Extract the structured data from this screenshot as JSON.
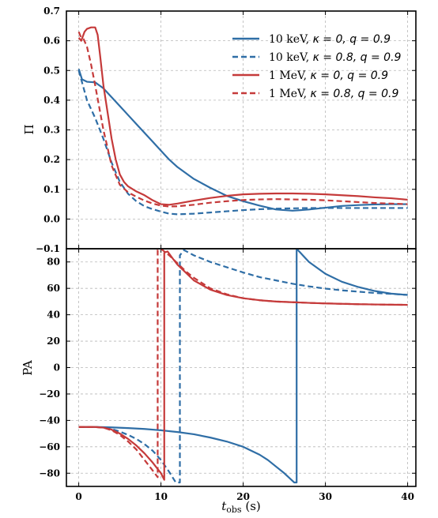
{
  "chart_data": [
    {
      "type": "line",
      "panel": "top",
      "ylabel": "Π",
      "ylim": [
        -0.1,
        0.7
      ],
      "xlim": [
        -1.5,
        41
      ],
      "yticks": [
        "−0.1",
        "0.0",
        "0.1",
        "0.2",
        "0.3",
        "0.4",
        "0.5",
        "0.6",
        "0.7"
      ],
      "grid": true,
      "legend_position": "top-right",
      "series": [
        {
          "name": "10 keV, κ = 0, q = 0.9",
          "color": "#2f6ea6",
          "dash": "solid",
          "x": [
            0,
            0.4,
            1,
            2,
            3,
            4,
            5,
            6,
            7,
            8,
            9,
            10,
            11,
            12,
            14,
            16,
            18,
            20,
            22,
            24,
            26,
            28,
            30,
            32,
            34,
            36,
            38,
            40
          ],
          "y": [
            0.505,
            0.47,
            0.462,
            0.46,
            0.44,
            0.41,
            0.38,
            0.35,
            0.32,
            0.29,
            0.26,
            0.23,
            0.2,
            0.175,
            0.135,
            0.105,
            0.078,
            0.06,
            0.045,
            0.032,
            0.028,
            0.032,
            0.038,
            0.044,
            0.047,
            0.049,
            0.05,
            0.05
          ]
        },
        {
          "name": "10 keV, κ = 0.8, q = 0.9",
          "color": "#2f6ea6",
          "dash": "dashed",
          "x": [
            0,
            0.5,
            1,
            2,
            3,
            4,
            5,
            6,
            7,
            8,
            9,
            10,
            11,
            12,
            14,
            16,
            18,
            20,
            22,
            24,
            26,
            28,
            30,
            32,
            34,
            36,
            38,
            40
          ],
          "y": [
            0.5,
            0.45,
            0.4,
            0.34,
            0.27,
            0.19,
            0.125,
            0.085,
            0.06,
            0.043,
            0.033,
            0.025,
            0.018,
            0.016,
            0.018,
            0.022,
            0.026,
            0.03,
            0.033,
            0.035,
            0.036,
            0.037,
            0.037,
            0.037,
            0.037,
            0.037,
            0.037,
            0.037
          ]
        },
        {
          "name": "1 MeV, κ = 0, q = 0.9",
          "color": "#c53a3a",
          "dash": "solid",
          "x": [
            0,
            0.3,
            0.7,
            1,
            1.5,
            2,
            2.3,
            2.6,
            3,
            3.5,
            4,
            4.5,
            5,
            5.5,
            6,
            7,
            8,
            9,
            10,
            11,
            12,
            14,
            16,
            18,
            20,
            22,
            24,
            26,
            28,
            30,
            32,
            34,
            36,
            38,
            40
          ],
          "y": [
            0.61,
            0.6,
            0.63,
            0.64,
            0.645,
            0.645,
            0.62,
            0.55,
            0.45,
            0.36,
            0.27,
            0.2,
            0.15,
            0.125,
            0.11,
            0.093,
            0.08,
            0.063,
            0.05,
            0.048,
            0.052,
            0.062,
            0.071,
            0.078,
            0.083,
            0.085,
            0.086,
            0.086,
            0.085,
            0.083,
            0.08,
            0.077,
            0.073,
            0.07,
            0.065
          ]
        },
        {
          "name": "1 MeV, κ = 0.8, q = 0.9",
          "color": "#c53a3a",
          "dash": "dashed",
          "x": [
            0,
            0.3,
            0.6,
            1,
            1.5,
            2,
            3,
            4,
            5,
            6,
            7,
            8,
            9,
            10,
            11,
            12,
            14,
            16,
            18,
            20,
            22,
            24,
            26,
            28,
            30,
            32,
            34,
            36,
            38,
            40
          ],
          "y": [
            0.63,
            0.61,
            0.605,
            0.58,
            0.52,
            0.45,
            0.3,
            0.18,
            0.115,
            0.09,
            0.075,
            0.062,
            0.052,
            0.045,
            0.042,
            0.043,
            0.048,
            0.055,
            0.06,
            0.064,
            0.066,
            0.067,
            0.066,
            0.065,
            0.063,
            0.06,
            0.057,
            0.054,
            0.052,
            0.05
          ]
        }
      ]
    },
    {
      "type": "line",
      "panel": "bottom",
      "xlabel_main": "t",
      "xlabel_sub": "obs",
      "xlabel_unit": " (s)",
      "ylabel": "PA",
      "ylim": [
        -90,
        90
      ],
      "xlim": [
        -1.5,
        41
      ],
      "xticks": [
        "0",
        "10",
        "20",
        "30",
        "40"
      ],
      "yticks": [
        "−80",
        "−60",
        "−40",
        "−20",
        "0",
        "20",
        "40",
        "60",
        "80"
      ],
      "grid": true,
      "series": [
        {
          "name": "10 keV, κ = 0, q = 0.9",
          "color": "#2f6ea6",
          "dash": "solid",
          "x": [
            0,
            2,
            4,
            6,
            8,
            10,
            12,
            14,
            16,
            18,
            20,
            22,
            23,
            24,
            25,
            26.2,
            26.5,
            26.5,
            28,
            30,
            32,
            34,
            36,
            38,
            40
          ],
          "y": [
            -45,
            -45,
            -45.3,
            -45.8,
            -46.5,
            -47.5,
            -48.8,
            -50.5,
            -53,
            -56,
            -60,
            -66,
            -70,
            -75,
            -80,
            -87,
            -87,
            90,
            80,
            71,
            65,
            61,
            58,
            56,
            55
          ]
        },
        {
          "name": "10 keV, κ = 0.8, q = 0.9",
          "color": "#2f6ea6",
          "dash": "dashed",
          "x": [
            0,
            2,
            3,
            4,
            5,
            6,
            7,
            8,
            9,
            10,
            11,
            11.8,
            12.3,
            12.3,
            12.8,
            14,
            16,
            18,
            20,
            22,
            24,
            26,
            28,
            30,
            32,
            34,
            36,
            38,
            40
          ],
          "y": [
            -45,
            -45,
            -45.3,
            -46.5,
            -48.5,
            -51,
            -54,
            -58,
            -63,
            -70,
            -79,
            -87,
            -87,
            85,
            89,
            85,
            80,
            76,
            72,
            68.5,
            66,
            63.5,
            61.5,
            59.8,
            58.5,
            57.5,
            56.5,
            55.8,
            55
          ]
        },
        {
          "name": "1 MeV, κ = 0, q = 0.9",
          "color": "#c53a3a",
          "dash": "solid",
          "x": [
            0,
            2,
            3,
            4,
            5,
            6,
            7,
            8,
            9,
            10,
            10.4,
            10.4,
            10.8,
            11.5,
            12,
            13,
            14,
            16,
            18,
            20,
            22,
            24,
            26,
            28,
            30,
            32,
            34,
            36,
            38,
            40
          ],
          "y": [
            -45,
            -45,
            -45.5,
            -47,
            -50,
            -54,
            -59,
            -65,
            -72,
            -80,
            -85,
            87,
            88,
            82,
            78,
            72,
            66,
            59,
            55,
            52.5,
            51,
            50,
            49.5,
            49,
            48.6,
            48.3,
            48,
            47.8,
            47.6,
            47.5
          ]
        },
        {
          "name": "1 MeV, κ = 0.8, q = 0.9",
          "color": "#c53a3a",
          "dash": "dashed",
          "x": [
            0,
            2,
            3,
            4,
            5,
            6,
            7,
            8,
            9,
            9.6,
            9.6,
            10,
            11,
            12,
            13,
            14,
            16,
            18,
            20,
            22,
            24,
            26,
            28,
            30,
            32,
            34,
            36,
            38,
            40
          ],
          "y": [
            -45,
            -45,
            -45.5,
            -47.5,
            -51,
            -56,
            -62,
            -70,
            -78,
            -83,
            89,
            90,
            85,
            79,
            73,
            68,
            60,
            55.5,
            52.5,
            51,
            50,
            49.5,
            49,
            48.6,
            48.3,
            48,
            47.8,
            47.6,
            47.5
          ]
        }
      ]
    }
  ],
  "legend": {
    "entries": [
      {
        "prefix": "10 keV, ",
        "math": "κ = 0, q = 0.9",
        "color": "#2f6ea6",
        "dash": "solid"
      },
      {
        "prefix": "10 keV, ",
        "math": "κ = 0.8, q = 0.9",
        "color": "#2f6ea6",
        "dash": "dashed"
      },
      {
        "prefix": "1 MeV, ",
        "math": "κ = 0, q = 0.9",
        "color": "#c53a3a",
        "dash": "solid"
      },
      {
        "prefix": "1 MeV, ",
        "math": "κ = 0.8, q = 0.9",
        "color": "#c53a3a",
        "dash": "dashed"
      }
    ]
  }
}
